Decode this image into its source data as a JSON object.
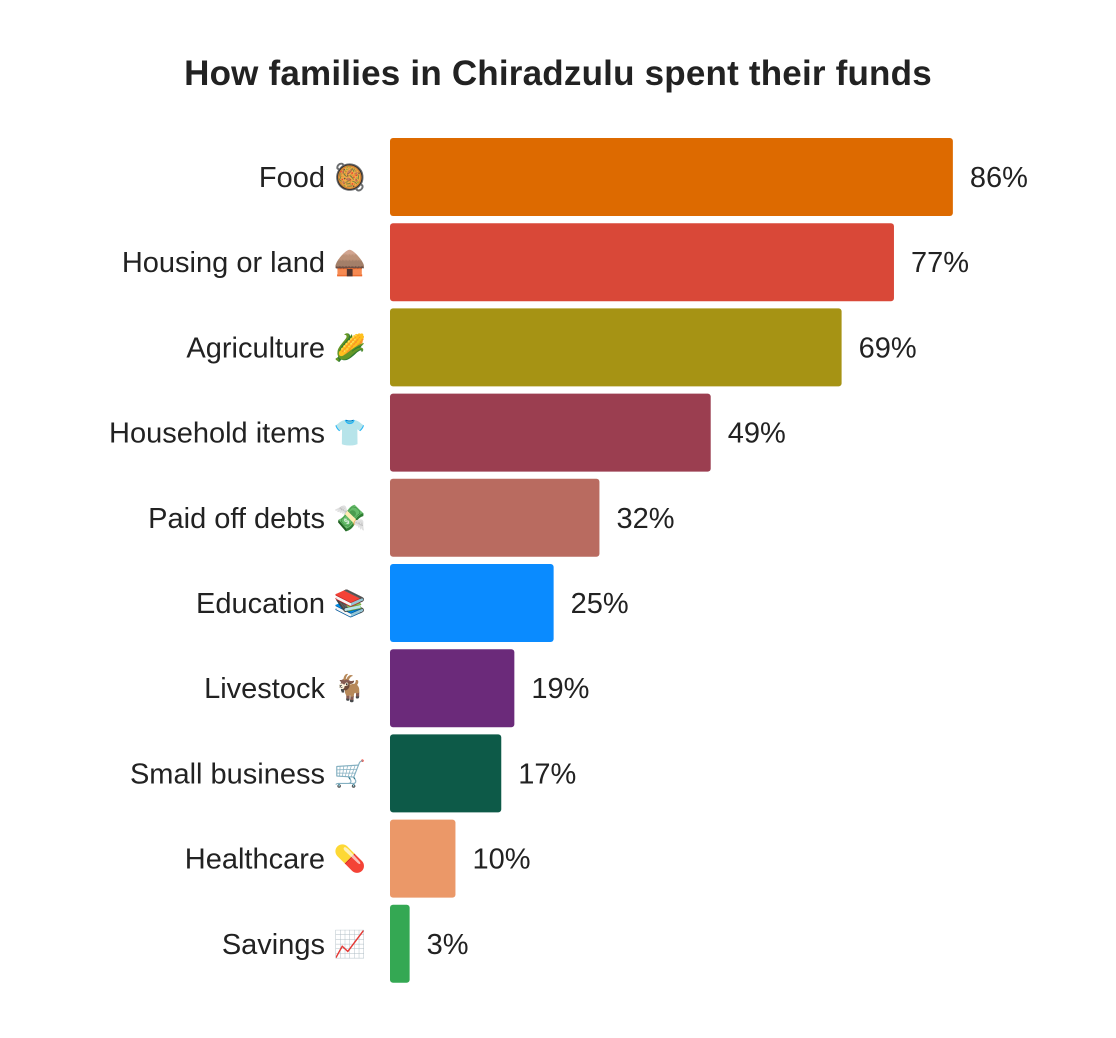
{
  "chart_data": {
    "type": "bar",
    "orientation": "horizontal",
    "title": "How families in Chiradzulu spent their funds",
    "categories": [
      "Food",
      "Housing or land",
      "Agriculture",
      "Household items",
      "Paid off debts",
      "Education",
      "Livestock",
      "Small business",
      "Healthcare",
      "Savings"
    ],
    "icons": [
      "paella-icon",
      "hut-icon",
      "corn-icon",
      "tshirt-icon",
      "money-with-wings-icon",
      "books-icon",
      "goat-icon",
      "shopping-cart-icon",
      "pill-icon",
      "chart-increasing-icon"
    ],
    "icon_glyphs": [
      "🥘",
      "🛖",
      "🌽",
      "👕",
      "💸",
      "📚",
      "🐐",
      "🛒",
      "💊",
      "📈"
    ],
    "values": [
      86,
      77,
      69,
      49,
      32,
      25,
      19,
      17,
      10,
      3
    ],
    "value_labels": [
      "86%",
      "77%",
      "69%",
      "49%",
      "32%",
      "25%",
      "19%",
      "17%",
      "10%",
      "3%"
    ],
    "colors": [
      "#DD6A00",
      "#D94838",
      "#A69314",
      "#9B3E50",
      "#B96B60",
      "#0A8BFF",
      "#6B2A7A",
      "#0D5A48",
      "#EB9868",
      "#34A853"
    ],
    "xlim": [
      0,
      100
    ],
    "grid": false,
    "legend": "none"
  }
}
